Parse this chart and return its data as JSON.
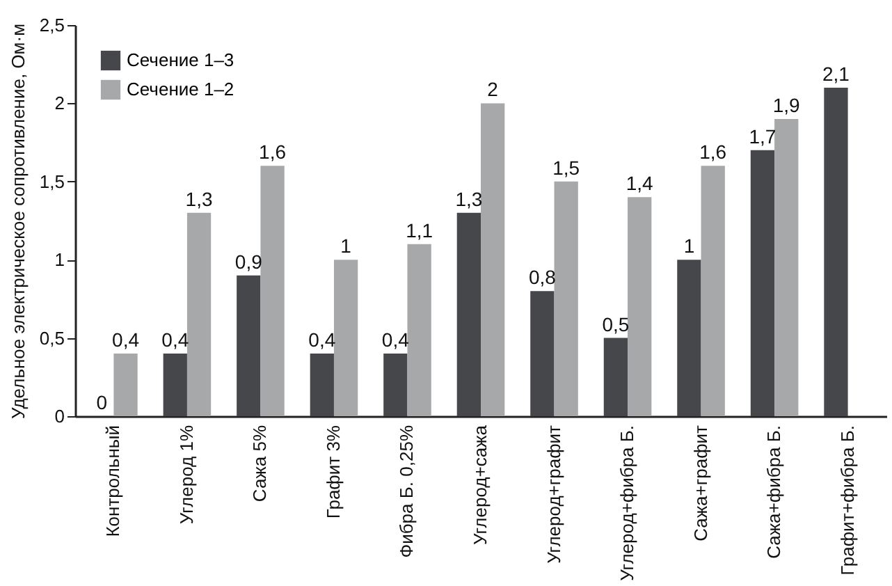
{
  "chart_data": {
    "type": "bar",
    "ylabel": "Удельное электрическое сопротивление, Ом·м",
    "categories": [
      "Контрольный",
      "Углерод 1%",
      "Сажа 5%",
      "Графит 3%",
      "Фибра Б. 0,25%",
      "Углерод+сажа",
      "Углерод+графит",
      "Углерод+фибра Б.",
      "Сажа+графит",
      "Сажа+фибра Б.",
      "Графит+фибра Б."
    ],
    "series": [
      {
        "name": "Сечение 1–3",
        "color": "#46474a",
        "values": [
          0,
          0.4,
          0.9,
          0.4,
          0.4,
          1.3,
          0.8,
          0.5,
          1,
          1.7,
          2.1
        ],
        "value_labels": [
          "0",
          "0,4",
          "0,9",
          "0,4",
          "0,4",
          "1,3",
          "0,8",
          "0,5",
          "1",
          "1,7",
          "2,1"
        ]
      },
      {
        "name": "Сечение 1–2",
        "color": "#a7a8aa",
        "values": [
          0.4,
          1.3,
          1.6,
          1,
          1.1,
          2,
          1.5,
          1.4,
          1.6,
          1.9,
          null
        ],
        "value_labels": [
          "0,4",
          "1,3",
          "1,6",
          "1",
          "1,1",
          "2",
          "1,5",
          "1,4",
          "1,6",
          "1,9",
          null
        ]
      }
    ],
    "ylim": [
      0,
      2.5
    ],
    "yticks": [
      0,
      {
        "value": 0.5,
        "label": "0,5"
      },
      1,
      {
        "value": 1.5,
        "label": "1,5"
      },
      2,
      {
        "value": 2.5,
        "label": "2,5"
      }
    ],
    "grid": false,
    "legend": "top left"
  }
}
